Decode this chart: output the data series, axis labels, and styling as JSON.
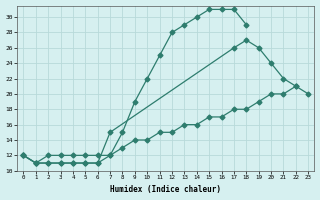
{
  "c1_x": [
    0,
    1,
    2,
    3,
    4,
    5,
    6,
    7,
    8,
    9,
    10,
    11,
    12,
    13,
    14,
    15,
    16,
    17,
    18
  ],
  "c1_y": [
    12,
    11,
    11,
    11,
    11,
    11,
    11,
    12,
    15,
    19,
    22,
    25,
    28,
    29,
    30,
    31,
    31,
    31,
    29
  ],
  "c2_x": [
    0,
    1,
    2,
    3,
    4,
    5,
    6,
    7,
    17,
    18,
    19,
    20,
    21,
    22
  ],
  "c2_y": [
    12,
    11,
    11,
    11,
    11,
    11,
    11,
    15,
    26,
    27,
    26,
    24,
    22,
    21
  ],
  "c3_x": [
    0,
    1,
    2,
    3,
    4,
    5,
    6,
    7,
    8,
    9,
    10,
    11,
    12,
    13,
    14,
    15,
    16,
    17,
    18,
    19,
    20,
    21,
    22,
    23
  ],
  "c3_y": [
    12,
    11,
    12,
    12,
    12,
    12,
    12,
    12,
    13,
    14,
    14,
    15,
    15,
    16,
    16,
    17,
    17,
    18,
    18,
    19,
    20,
    20,
    21,
    20
  ],
  "color": "#2e7d6e",
  "bg_color": "#d6f0f0",
  "grid_color": "#b8dada",
  "xlabel": "Humidex (Indice chaleur)",
  "xlim": [
    -0.5,
    23.5
  ],
  "ylim": [
    10,
    31.5
  ],
  "yticks": [
    10,
    12,
    14,
    16,
    18,
    20,
    22,
    24,
    26,
    28,
    30
  ],
  "xticks": [
    0,
    1,
    2,
    3,
    4,
    5,
    6,
    7,
    8,
    9,
    10,
    11,
    12,
    13,
    14,
    15,
    16,
    17,
    18,
    19,
    20,
    21,
    22,
    23
  ]
}
